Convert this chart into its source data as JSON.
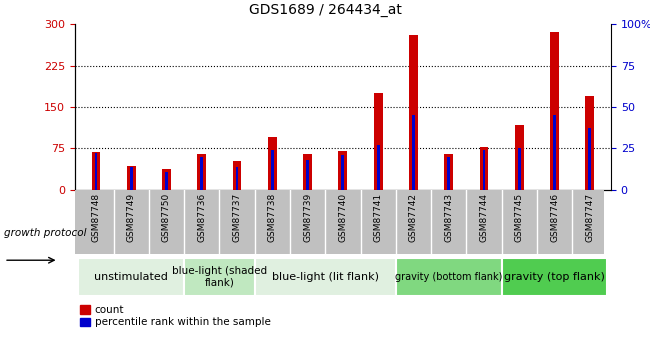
{
  "title": "GDS1689 / 264434_at",
  "samples": [
    "GSM87748",
    "GSM87749",
    "GSM87750",
    "GSM87736",
    "GSM87737",
    "GSM87738",
    "GSM87739",
    "GSM87740",
    "GSM87741",
    "GSM87742",
    "GSM87743",
    "GSM87744",
    "GSM87745",
    "GSM87746",
    "GSM87747"
  ],
  "counts": [
    68,
    43,
    37,
    65,
    52,
    95,
    64,
    70,
    175,
    280,
    64,
    78,
    118,
    285,
    170
  ],
  "percentiles": [
    22,
    14,
    11,
    20,
    14,
    24,
    18,
    21,
    27,
    45,
    20,
    24,
    25,
    45,
    37
  ],
  "groups": [
    {
      "label": "unstimulated",
      "start": 0,
      "end": 3,
      "color": "#e0f0e0"
    },
    {
      "label": "blue-light (shaded\nflank)",
      "start": 3,
      "end": 5,
      "color": "#c0e8c0"
    },
    {
      "label": "blue-light (lit flank)",
      "start": 5,
      "end": 9,
      "color": "#e0f0e0"
    },
    {
      "label": "gravity (bottom flank)",
      "start": 9,
      "end": 12,
      "color": "#80d880"
    },
    {
      "label": "gravity (top flank)",
      "start": 12,
      "end": 15,
      "color": "#50cc50"
    }
  ],
  "bar_color_count": "#cc0000",
  "bar_color_pct": "#0000cc",
  "ylim_left": [
    0,
    300
  ],
  "ylim_right": [
    0,
    100
  ],
  "yticks_left": [
    0,
    75,
    150,
    225,
    300
  ],
  "yticks_right": [
    0,
    25,
    50,
    75,
    100
  ],
  "gridlines": [
    75,
    150,
    225
  ],
  "bar_width": 0.25,
  "pct_bar_width": 0.08,
  "growth_protocol_label": "growth protocol",
  "xtick_bg": "#c0c0c0",
  "group_font_sizes": [
    8,
    7.5,
    8,
    7,
    8
  ]
}
